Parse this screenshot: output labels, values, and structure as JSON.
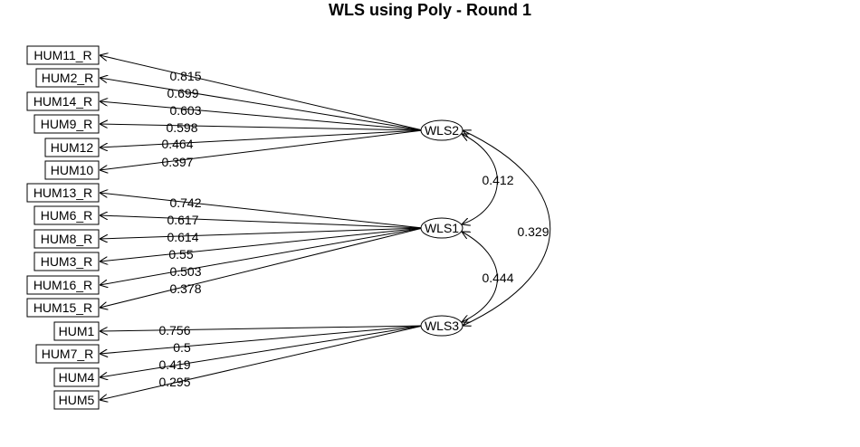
{
  "title": "WLS using Poly - Round 1",
  "factors": [
    {
      "id": "WLS2",
      "label": "WLS2"
    },
    {
      "id": "WLS1",
      "label": "WLS1"
    },
    {
      "id": "WLS3",
      "label": "WLS3"
    }
  ],
  "items": [
    {
      "label": "HUM11_R",
      "factor": "WLS2",
      "loading": "0.815"
    },
    {
      "label": "HUM2_R",
      "factor": "WLS2",
      "loading": "0.699"
    },
    {
      "label": "HUM14_R",
      "factor": "WLS2",
      "loading": "0.603"
    },
    {
      "label": "HUM9_R",
      "factor": "WLS2",
      "loading": "0.598"
    },
    {
      "label": "HUM12",
      "factor": "WLS2",
      "loading": "0.464"
    },
    {
      "label": "HUM10",
      "factor": "WLS2",
      "loading": "0.397"
    },
    {
      "label": "HUM13_R",
      "factor": "WLS1",
      "loading": "0.742"
    },
    {
      "label": "HUM6_R",
      "factor": "WLS1",
      "loading": "0.617"
    },
    {
      "label": "HUM8_R",
      "factor": "WLS1",
      "loading": "0.614"
    },
    {
      "label": "HUM3_R",
      "factor": "WLS1",
      "loading": "0.55"
    },
    {
      "label": "HUM16_R",
      "factor": "WLS1",
      "loading": "0.503"
    },
    {
      "label": "HUM15_R",
      "factor": "WLS1",
      "loading": "0.378"
    },
    {
      "label": "HUM1",
      "factor": "WLS3",
      "loading": "0.756"
    },
    {
      "label": "HUM7_R",
      "factor": "WLS3",
      "loading": "0.5"
    },
    {
      "label": "HUM4",
      "factor": "WLS3",
      "loading": "0.419"
    },
    {
      "label": "HUM5",
      "factor": "WLS3",
      "loading": "0.295"
    }
  ],
  "correlations": [
    {
      "from": "WLS2",
      "to": "WLS1",
      "value": "0.412"
    },
    {
      "from": "WLS1",
      "to": "WLS3",
      "value": "0.444"
    },
    {
      "from": "WLS2",
      "to": "WLS3",
      "value": "0.329"
    }
  ]
}
